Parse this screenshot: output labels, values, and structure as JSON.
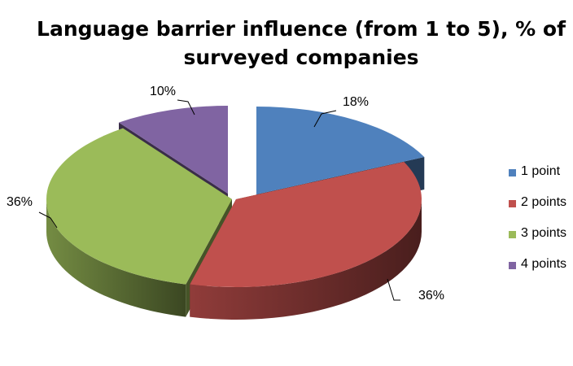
{
  "chart_data": {
    "type": "pie",
    "title": [
      "Language barrier influence (from 1 to 5), % of",
      "surveyed companies"
    ],
    "slices": [
      {
        "label": "1 point",
        "value": 18,
        "value_label": "18%",
        "color": "#4F81BD"
      },
      {
        "label": "2 points",
        "value": 36,
        "value_label": "36%",
        "color": "#C0504D"
      },
      {
        "label": "3 points",
        "value": 36,
        "value_label": "36%",
        "color": "#9BBB59"
      },
      {
        "label": "4 points",
        "value": 10,
        "value_label": "10%",
        "color": "#8064A2"
      }
    ],
    "legend_position": "right",
    "style": "3d-exploded"
  }
}
